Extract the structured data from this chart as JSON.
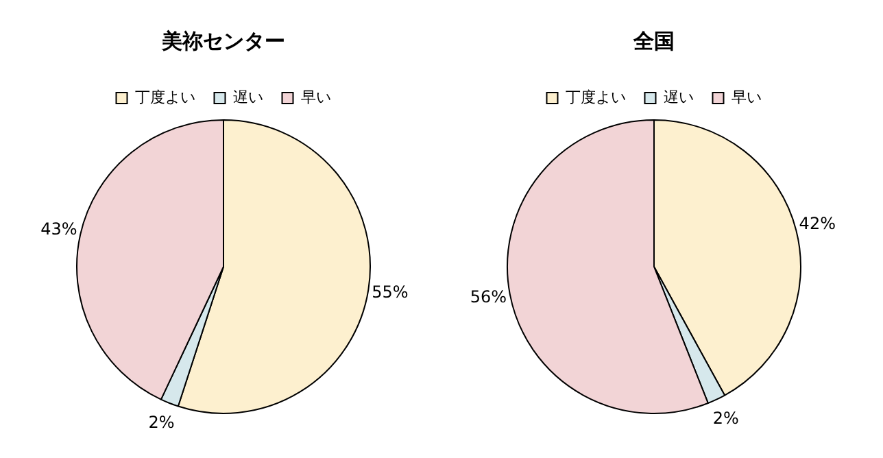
{
  "chart_data": [
    {
      "type": "pie",
      "title": "美祢センター",
      "categories": [
        "丁度よい",
        "遅い",
        "早い"
      ],
      "values": [
        55,
        2,
        43
      ],
      "colors": [
        "#fdf0cf",
        "#d6e8ec",
        "#f2d4d6"
      ],
      "value_labels": [
        "55%",
        "2%",
        "43%"
      ],
      "legend": "top"
    },
    {
      "type": "pie",
      "title": "全国",
      "categories": [
        "丁度よい",
        "遅い",
        "早い"
      ],
      "values": [
        42,
        2,
        56
      ],
      "colors": [
        "#fdf0cf",
        "#d6e8ec",
        "#f2d4d6"
      ],
      "value_labels": [
        "42%",
        "2%",
        "56%"
      ],
      "legend": "top"
    }
  ]
}
